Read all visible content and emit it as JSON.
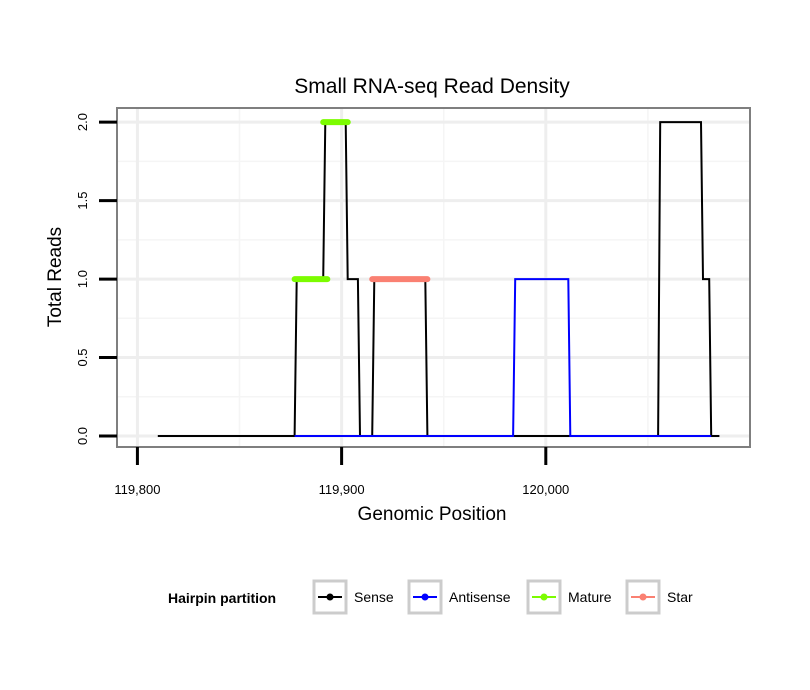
{
  "chart_data": {
    "type": "line",
    "title": "Small RNA-seq Read Density",
    "xlabel": "Genomic Position",
    "ylabel": "Total Reads",
    "xlim": [
      119790,
      120100
    ],
    "ylim": [
      -0.07,
      2.09
    ],
    "x_ticks": [
      119800,
      119900,
      120000
    ],
    "x_tick_labels": [
      "119,800",
      "119,900",
      "120,000"
    ],
    "y_ticks": [
      0.0,
      0.5,
      1.0,
      1.5,
      2.0
    ],
    "y_tick_labels": [
      "0.0",
      "0.5",
      "1.0",
      "1.5",
      "2.0"
    ],
    "x_minor_ticks": [
      119850,
      119950,
      120050
    ],
    "y_minor_ticks": [
      0.25,
      0.75,
      1.25,
      1.75
    ],
    "grid": true,
    "legend": {
      "title": "Hairpin partition",
      "position": "bottom",
      "entries": [
        {
          "label": "Sense",
          "color": "#000000"
        },
        {
          "label": "Antisense",
          "color": "#0000ff"
        },
        {
          "label": "Mature",
          "color": "#7cfc00"
        },
        {
          "label": "Star",
          "color": "#fa8072"
        }
      ]
    },
    "series": [
      {
        "name": "Sense",
        "color": "#000000",
        "width": 2,
        "x": [
          119810,
          119877,
          119878,
          119891,
          119892,
          119902,
          119903,
          119908,
          119909,
          119915,
          119916,
          119941,
          119942,
          120055,
          120056,
          120076,
          120077,
          120080,
          120081,
          120085
        ],
        "y": [
          0,
          0,
          1,
          1,
          2,
          2,
          1,
          1,
          0,
          0,
          1,
          1,
          0,
          0,
          2,
          2,
          1,
          1,
          0,
          0
        ]
      },
      {
        "name": "Antisense",
        "color": "#0000ff",
        "width": 2,
        "x": [
          119877,
          119984,
          119985,
          120011,
          120012,
          120081
        ],
        "y": [
          0,
          0,
          1,
          1,
          0,
          0
        ]
      },
      {
        "name": "Mature",
        "color": "#7cfc00",
        "width": 6,
        "segments": [
          {
            "x": [
              119877,
              119893
            ],
            "y": [
              1,
              1
            ]
          },
          {
            "x": [
              119891,
              119903
            ],
            "y": [
              2,
              2
            ]
          }
        ]
      },
      {
        "name": "Star",
        "color": "#fa8072",
        "width": 6,
        "segments": [
          {
            "x": [
              119915,
              119942
            ],
            "y": [
              1,
              1
            ]
          }
        ]
      }
    ]
  }
}
